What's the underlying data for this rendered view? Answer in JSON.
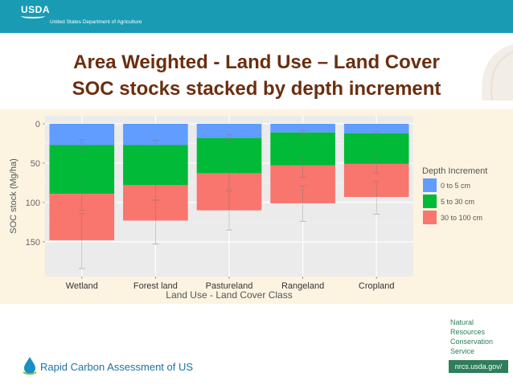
{
  "header": {
    "logo_text": "USDA",
    "agency": "United States Department of Agriculture"
  },
  "slide_title": {
    "line1": "Area Weighted - Land Use – Land Cover",
    "line2": "SOC stocks stacked by depth increment"
  },
  "footer": {
    "project": "Rapid Carbon Assessment of US",
    "nrcs_lines": [
      "Natural",
      "Resources",
      "Conservation",
      "Service"
    ],
    "url": "nrcs.usda.gov/"
  },
  "colors": {
    "header_bg": "#1a9bb4",
    "title": "#6b2e0f",
    "chart_band": "#fdf3e1",
    "plot_bg": "#ebebeb",
    "series": [
      "#619cff",
      "#00ba38",
      "#f8766d"
    ],
    "nrcs_green": "#2e7d5b"
  },
  "chart_data": {
    "type": "bar",
    "stacked": true,
    "y_reversed": true,
    "categories": [
      "Wetland",
      "Forest land",
      "Pastureland",
      "Rangeland",
      "Cropland"
    ],
    "series": [
      {
        "name": "0 to 5 cm",
        "values": [
          27,
          27,
          18,
          11,
          12
        ]
      },
      {
        "name": "5 to 30 cm",
        "values": [
          62,
          51,
          45,
          42,
          39
        ]
      },
      {
        "name": "30 to 100 cm",
        "values": [
          59,
          45,
          47,
          48,
          42
        ]
      }
    ],
    "error_bars": [
      {
        "series": "0 to 5 cm",
        "low": [
          20,
          21,
          14,
          9,
          10
        ],
        "high": [
          34,
          35,
          24,
          14,
          15
        ]
      },
      {
        "series": "5 to 30 cm",
        "low": [
          68,
          61,
          48,
          42,
          40
        ],
        "high": [
          110,
          97,
          84,
          68,
          63
        ]
      },
      {
        "series": "30 to 100 cm",
        "low": [
          114,
          97,
          86,
          79,
          73
        ],
        "high": [
          184,
          153,
          135,
          124,
          115
        ]
      }
    ],
    "xlabel": "Land Use - Land Cover Class",
    "ylabel": "SOC stock (Mg/ha)",
    "y_ticks": [
      0,
      50,
      100,
      150
    ],
    "ylim": [
      0,
      190
    ],
    "legend_title": "Depth Increment",
    "legend_position": "right",
    "grid": true
  }
}
